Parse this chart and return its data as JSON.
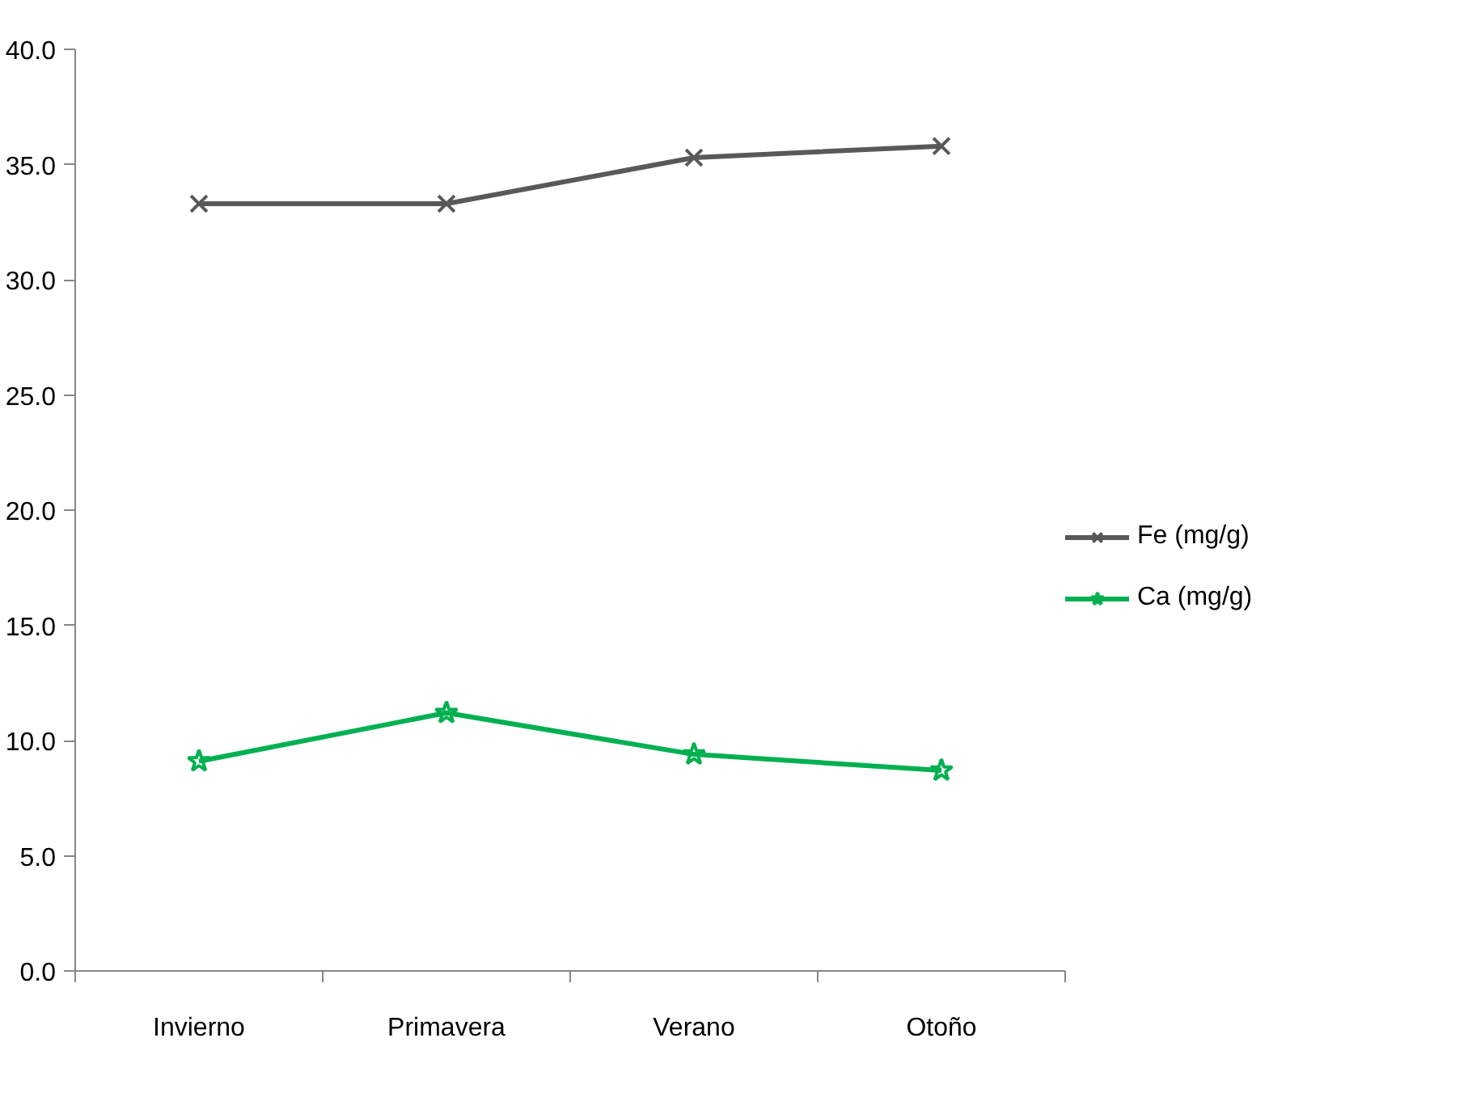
{
  "chart_data": {
    "type": "line",
    "categories": [
      "Invierno",
      "Primavera",
      "Verano",
      "Otoño"
    ],
    "series": [
      {
        "name": "Fe (mg/g)",
        "color": "#595959",
        "marker": "cross",
        "values": [
          33.3,
          33.3,
          35.3,
          35.8
        ]
      },
      {
        "name": "Ca (mg/g)",
        "color": "#00b050",
        "marker": "star",
        "values": [
          9.1,
          11.2,
          9.4,
          8.7
        ]
      }
    ],
    "ylim": [
      0,
      40
    ],
    "yticks": [
      {
        "value": 0,
        "label": "0.0"
      },
      {
        "value": 5,
        "label": "5.0"
      },
      {
        "value": 10,
        "label": "10.0"
      },
      {
        "value": 15,
        "label": "15.0"
      },
      {
        "value": 20,
        "label": "20.0"
      },
      {
        "value": 25,
        "label": "25.0"
      },
      {
        "value": 30,
        "label": "30.0"
      },
      {
        "value": 35,
        "label": "35.0"
      },
      {
        "value": 40,
        "label": "40.0"
      }
    ],
    "grid": false,
    "legend": "right"
  }
}
